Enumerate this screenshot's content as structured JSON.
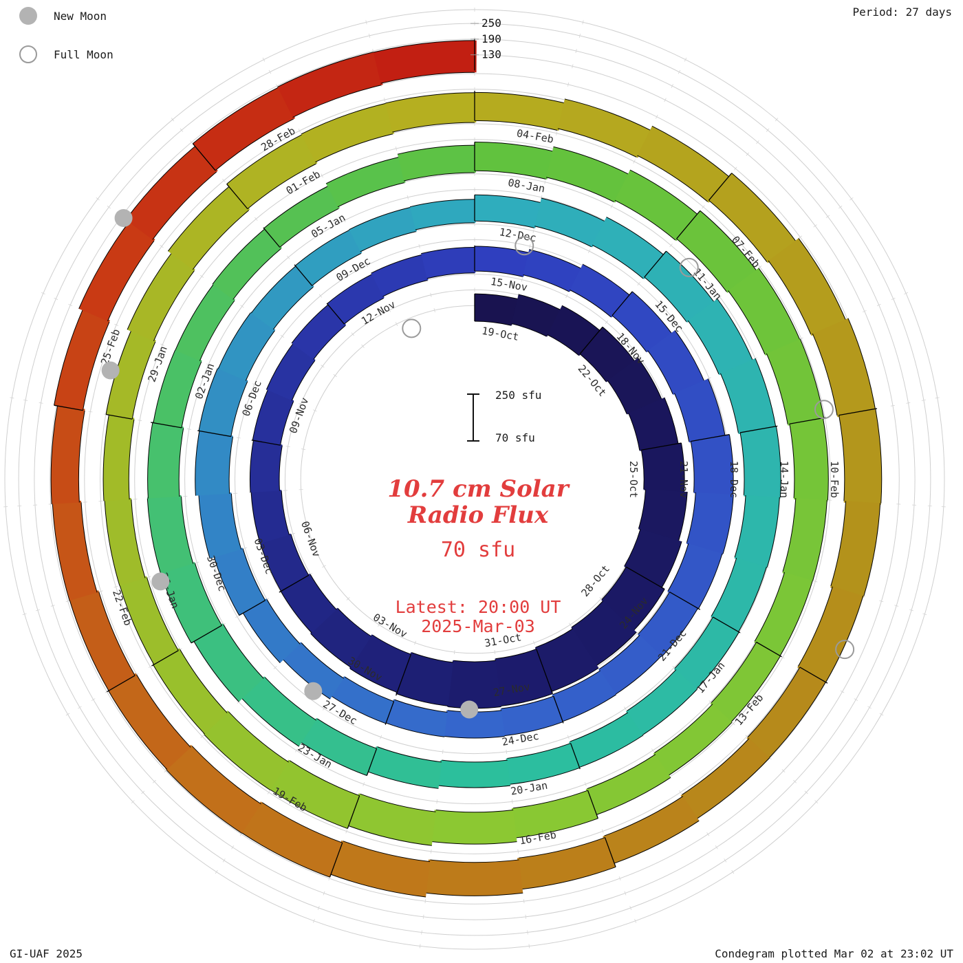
{
  "legend": {
    "new_moon": "New Moon",
    "full_moon": "Full Moon"
  },
  "header": {
    "period": "Period: 27 days"
  },
  "footer": {
    "credit": "GI-UAF 2025",
    "plotted": "Condegram plotted Mar 02 at 23:02 UT"
  },
  "center": {
    "title_line1": "10.7 cm Solar",
    "title_line2": "Radio Flux",
    "flux_value": "70 sfu",
    "latest_line1": "Latest: 20:00 UT",
    "latest_line2": "2025-Mar-03",
    "accent_color": "#e23d3d"
  },
  "scalebar": {
    "top_label": "250 sfu",
    "bottom_label": "70 sfu"
  },
  "chart_data": {
    "type": "spiral-bar-condegram",
    "title": "10.7 cm Solar Radio Flux",
    "units": "sfu",
    "baseline_sfu": 70,
    "radial_ticks_sfu": [
      250,
      190,
      130
    ],
    "radial_tick_labels": [
      "250",
      "190",
      "130"
    ],
    "period_days": 27,
    "days_per_segment": 3,
    "start_label": "19-Oct",
    "end_label": "2025-Mar-03",
    "segment_labels": [
      "19-Oct",
      "22-Oct",
      "25-Oct",
      "28-Oct",
      "31-Oct",
      "03-Nov",
      "06-Nov",
      "09-Nov",
      "12-Nov",
      "15-Nov",
      "18-Nov",
      "21-Nov",
      "24-Nov",
      "27-Nov",
      "30-Nov",
      "03-Dec",
      "06-Dec",
      "09-Dec",
      "12-Dec",
      "15-Dec",
      "18-Dec",
      "21-Dec",
      "24-Dec",
      "27-Dec",
      "30-Dec",
      "02-Jan",
      "05-Jan",
      "08-Jan",
      "11-Jan",
      "14-Jan",
      "17-Jan",
      "20-Jan",
      "23-Jan",
      "26-Jan",
      "29-Jan",
      "01-Feb",
      "04-Feb",
      "07-Feb",
      "10-Feb",
      "13-Feb",
      "16-Feb",
      "19-Feb",
      "22-Feb",
      "25-Feb",
      "28-Feb"
    ],
    "daily_flux_sfu": [
      175,
      185,
      195,
      205,
      215,
      220,
      225,
      230,
      235,
      240,
      245,
      250,
      252,
      248,
      238,
      225,
      212,
      200,
      192,
      186,
      182,
      178,
      176,
      174,
      172,
      170,
      168,
      165,
      170,
      180,
      190,
      200,
      210,
      220,
      215,
      205,
      195,
      185,
      180,
      175,
      170,
      165,
      160,
      165,
      175,
      185,
      195,
      200,
      195,
      185,
      175,
      170,
      165,
      160,
      170,
      180,
      190,
      200,
      210,
      215,
      210,
      200,
      190,
      185,
      180,
      175,
      170,
      168,
      172,
      180,
      190,
      200,
      205,
      200,
      190,
      180,
      172,
      168,
      165,
      170,
      175,
      180,
      190,
      200,
      210,
      215,
      210,
      200,
      190,
      182,
      176,
      172,
      176,
      184,
      192,
      200,
      204,
      198,
      188,
      178,
      172,
      168,
      172,
      180,
      188,
      194,
      190,
      184,
      178,
      186,
      196,
      206,
      214,
      218,
      212,
      202,
      192,
      184,
      178,
      182,
      190,
      198,
      206,
      210,
      204,
      194,
      186,
      180,
      176,
      182,
      190,
      198,
      204,
      200,
      192
    ],
    "colormap_stops": [
      {
        "day": 0,
        "color": "#191350"
      },
      {
        "day": 13,
        "color": "#1c1c6e"
      },
      {
        "day": 27,
        "color": "#2f3fbf"
      },
      {
        "day": 40,
        "color": "#3566cc"
      },
      {
        "day": 54,
        "color": "#2fadbd"
      },
      {
        "day": 67,
        "color": "#2cbf9c"
      },
      {
        "day": 81,
        "color": "#61c23e"
      },
      {
        "day": 94,
        "color": "#8cc832"
      },
      {
        "day": 107,
        "color": "#b5af20"
      },
      {
        "day": 115,
        "color": "#b3921b"
      },
      {
        "day": 124,
        "color": "#c2701a"
      },
      {
        "day": 130,
        "color": "#c93a14"
      },
      {
        "day": 134,
        "color": "#c21f12"
      }
    ],
    "moons": [
      {
        "type": "full",
        "date": "17-Oct",
        "day": -1.7
      },
      {
        "type": "new",
        "date": "01-Nov",
        "day": 13.6
      },
      {
        "type": "full",
        "date": "15-Nov",
        "day": 27.9
      },
      {
        "type": "new",
        "date": "01-Dec",
        "day": 43.3
      },
      {
        "type": "full",
        "date": "15-Dec",
        "day": 57.4
      },
      {
        "type": "new",
        "date": "30-Dec",
        "day": 72.9
      },
      {
        "type": "full",
        "date": "13-Jan",
        "day": 86.9
      },
      {
        "type": "new",
        "date": "29-Jan",
        "day": 102.5
      },
      {
        "type": "full",
        "date": "12-Feb",
        "day": 116.6
      },
      {
        "type": "new",
        "date": "28-Feb",
        "day": 131.0
      }
    ]
  }
}
